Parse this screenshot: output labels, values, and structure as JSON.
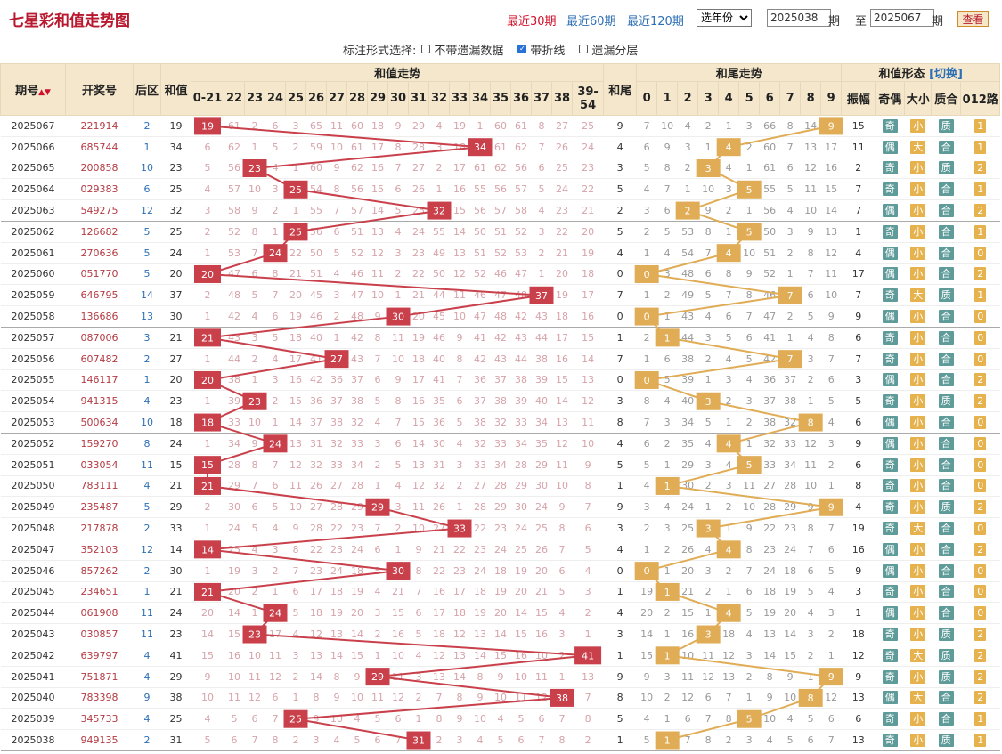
{
  "header": {
    "title": "七星彩和值走势图",
    "periods": [
      "最近30期",
      "最近60期",
      "最近120期"
    ],
    "active_period": 0,
    "year_select": "选年份",
    "range_from": "2025038",
    "range_from_suffix": "期",
    "range_to_prefix": "至",
    "range_to": "2025067",
    "range_to_suffix": "期",
    "query_label": "查看"
  },
  "options": {
    "label": "标注形式选择:",
    "items": [
      {
        "label": "不带遗漏数据",
        "checked": false
      },
      {
        "label": "带折线",
        "checked": true
      },
      {
        "label": "遗漏分层",
        "checked": false
      }
    ]
  },
  "table": {
    "col_issue": "期号",
    "col_number": "开奖号",
    "col_back": "后区",
    "col_sum": "和值",
    "group_sum_trend": "和值走势",
    "col_tail": "和尾",
    "group_tail_trend": "和尾走势",
    "group_form": "和值形态",
    "switch_label": "[切换]",
    "sum_columns": [
      "0-21",
      "22",
      "23",
      "24",
      "25",
      "26",
      "27",
      "28",
      "29",
      "30",
      "31",
      "32",
      "33",
      "34",
      "35",
      "36",
      "37",
      "38",
      "39-54"
    ],
    "tail_columns": [
      "0",
      "1",
      "2",
      "3",
      "4",
      "5",
      "6",
      "7",
      "8",
      "9"
    ],
    "form_columns": [
      "振幅",
      "奇偶",
      "大小",
      "质合",
      "012路"
    ]
  },
  "colors": {
    "accent": "#c9404b",
    "tail_accent": "#e0ac55",
    "header_bg": "#f5e7cb",
    "label_green": "#5f9c99",
    "label_yellow": "#e6b24e"
  },
  "rows": [
    {
      "issue": "2025067",
      "number": "221914",
      "back": "2",
      "sum": "19",
      "tail": "9",
      "amp": "15",
      "oe": "奇",
      "bs": "小",
      "pc": "质",
      "r012": "1"
    },
    {
      "issue": "2025066",
      "number": "685744",
      "back": "1",
      "sum": "34",
      "tail": "4",
      "amp": "11",
      "oe": "偶",
      "bs": "大",
      "pc": "合",
      "r012": "1"
    },
    {
      "issue": "2025065",
      "number": "200858",
      "back": "10",
      "sum": "23",
      "tail": "3",
      "amp": "2",
      "oe": "奇",
      "bs": "小",
      "pc": "质",
      "r012": "2"
    },
    {
      "issue": "2025064",
      "number": "029383",
      "back": "6",
      "sum": "25",
      "tail": "5",
      "amp": "7",
      "oe": "奇",
      "bs": "小",
      "pc": "合",
      "r012": "1"
    },
    {
      "issue": "2025063",
      "number": "549275",
      "back": "12",
      "sum": "32",
      "tail": "2",
      "amp": "7",
      "oe": "偶",
      "bs": "小",
      "pc": "合",
      "r012": "2"
    },
    {
      "issue": "2025062",
      "number": "126682",
      "back": "5",
      "sum": "25",
      "tail": "5",
      "amp": "1",
      "oe": "奇",
      "bs": "小",
      "pc": "合",
      "r012": "1"
    },
    {
      "issue": "2025061",
      "number": "270636",
      "back": "5",
      "sum": "24",
      "tail": "4",
      "amp": "4",
      "oe": "偶",
      "bs": "小",
      "pc": "合",
      "r012": "0"
    },
    {
      "issue": "2025060",
      "number": "051770",
      "back": "5",
      "sum": "20",
      "tail": "0",
      "amp": "17",
      "oe": "偶",
      "bs": "小",
      "pc": "合",
      "r012": "2"
    },
    {
      "issue": "2025059",
      "number": "646795",
      "back": "14",
      "sum": "37",
      "tail": "7",
      "amp": "7",
      "oe": "奇",
      "bs": "大",
      "pc": "质",
      "r012": "1"
    },
    {
      "issue": "2025058",
      "number": "136686",
      "back": "13",
      "sum": "30",
      "tail": "0",
      "amp": "9",
      "oe": "偶",
      "bs": "小",
      "pc": "合",
      "r012": "0"
    },
    {
      "issue": "2025057",
      "number": "087006",
      "back": "3",
      "sum": "21",
      "tail": "1",
      "amp": "6",
      "oe": "奇",
      "bs": "小",
      "pc": "合",
      "r012": "0"
    },
    {
      "issue": "2025056",
      "number": "607482",
      "back": "2",
      "sum": "27",
      "tail": "7",
      "amp": "7",
      "oe": "奇",
      "bs": "小",
      "pc": "合",
      "r012": "0"
    },
    {
      "issue": "2025055",
      "number": "146117",
      "back": "1",
      "sum": "20",
      "tail": "0",
      "amp": "3",
      "oe": "偶",
      "bs": "小",
      "pc": "合",
      "r012": "2"
    },
    {
      "issue": "2025054",
      "number": "941315",
      "back": "4",
      "sum": "23",
      "tail": "3",
      "amp": "5",
      "oe": "奇",
      "bs": "小",
      "pc": "质",
      "r012": "2"
    },
    {
      "issue": "2025053",
      "number": "500634",
      "back": "10",
      "sum": "18",
      "tail": "8",
      "amp": "6",
      "oe": "偶",
      "bs": "小",
      "pc": "合",
      "r012": "0"
    },
    {
      "issue": "2025052",
      "number": "159270",
      "back": "8",
      "sum": "24",
      "tail": "4",
      "amp": "9",
      "oe": "偶",
      "bs": "小",
      "pc": "合",
      "r012": "0"
    },
    {
      "issue": "2025051",
      "number": "033054",
      "back": "11",
      "sum": "15",
      "tail": "5",
      "amp": "6",
      "oe": "奇",
      "bs": "小",
      "pc": "合",
      "r012": "0"
    },
    {
      "issue": "2025050",
      "number": "783111",
      "back": "4",
      "sum": "21",
      "tail": "1",
      "amp": "8",
      "oe": "奇",
      "bs": "小",
      "pc": "合",
      "r012": "0"
    },
    {
      "issue": "2025049",
      "number": "235487",
      "back": "5",
      "sum": "29",
      "tail": "9",
      "amp": "4",
      "oe": "奇",
      "bs": "小",
      "pc": "质",
      "r012": "2"
    },
    {
      "issue": "2025048",
      "number": "217878",
      "back": "2",
      "sum": "33",
      "tail": "3",
      "amp": "19",
      "oe": "奇",
      "bs": "大",
      "pc": "合",
      "r012": "0"
    },
    {
      "issue": "2025047",
      "number": "352103",
      "back": "12",
      "sum": "14",
      "tail": "4",
      "amp": "16",
      "oe": "偶",
      "bs": "小",
      "pc": "合",
      "r012": "2"
    },
    {
      "issue": "2025046",
      "number": "857262",
      "back": "2",
      "sum": "30",
      "tail": "0",
      "amp": "9",
      "oe": "偶",
      "bs": "小",
      "pc": "合",
      "r012": "0"
    },
    {
      "issue": "2025045",
      "number": "234651",
      "back": "1",
      "sum": "21",
      "tail": "1",
      "amp": "3",
      "oe": "奇",
      "bs": "小",
      "pc": "合",
      "r012": "0"
    },
    {
      "issue": "2025044",
      "number": "061908",
      "back": "11",
      "sum": "24",
      "tail": "4",
      "amp": "1",
      "oe": "偶",
      "bs": "小",
      "pc": "合",
      "r012": "0"
    },
    {
      "issue": "2025043",
      "number": "030857",
      "back": "11",
      "sum": "23",
      "tail": "3",
      "amp": "18",
      "oe": "奇",
      "bs": "小",
      "pc": "质",
      "r012": "2"
    },
    {
      "issue": "2025042",
      "number": "639797",
      "back": "4",
      "sum": "41",
      "tail": "1",
      "amp": "12",
      "oe": "奇",
      "bs": "大",
      "pc": "质",
      "r012": "2"
    },
    {
      "issue": "2025041",
      "number": "751871",
      "back": "4",
      "sum": "29",
      "tail": "9",
      "amp": "9",
      "oe": "奇",
      "bs": "小",
      "pc": "质",
      "r012": "2"
    },
    {
      "issue": "2025040",
      "number": "783398",
      "back": "9",
      "sum": "38",
      "tail": "8",
      "amp": "13",
      "oe": "偶",
      "bs": "大",
      "pc": "合",
      "r012": "2"
    },
    {
      "issue": "2025039",
      "number": "345733",
      "back": "4",
      "sum": "25",
      "tail": "5",
      "amp": "6",
      "oe": "奇",
      "bs": "小",
      "pc": "合",
      "r012": "1"
    },
    {
      "issue": "2025038",
      "number": "949135",
      "back": "2",
      "sum": "31",
      "tail": "1",
      "amp": "13",
      "oe": "奇",
      "bs": "小",
      "pc": "质",
      "r012": "1"
    }
  ]
}
